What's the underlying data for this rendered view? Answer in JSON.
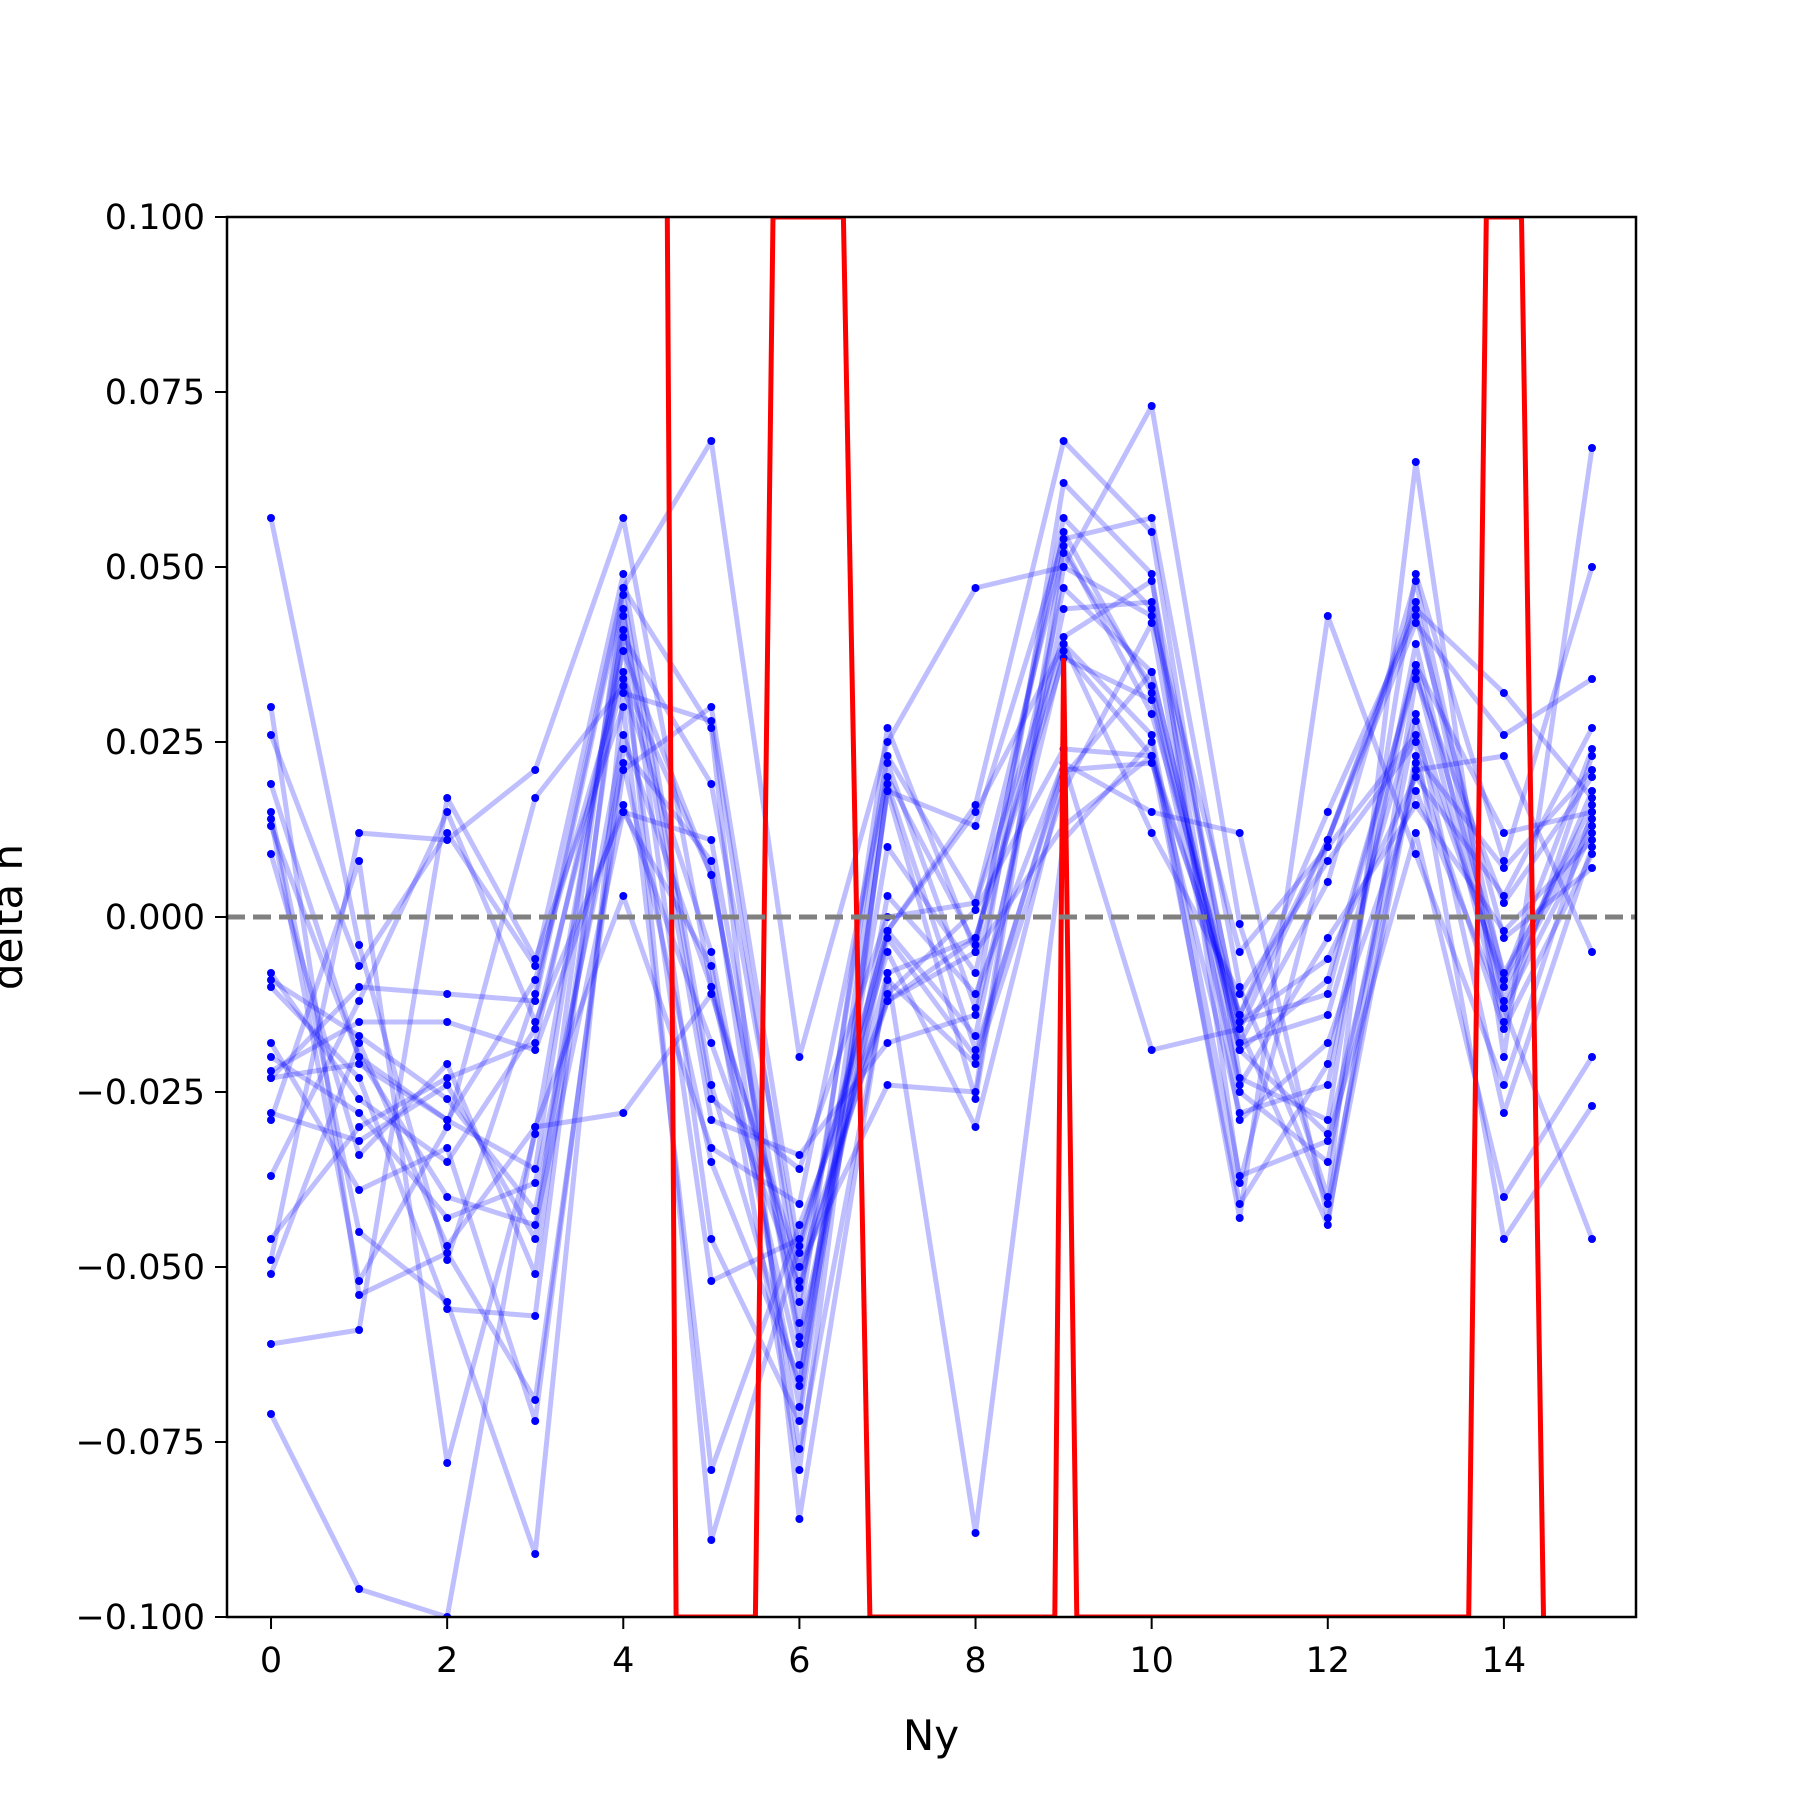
{
  "chart_data": {
    "type": "line",
    "xlabel": "Ny",
    "ylabel": "delta h",
    "xlim": [
      -0.5,
      15.5
    ],
    "ylim": [
      -0.1,
      0.1
    ],
    "x_ticks": [
      0,
      2,
      4,
      6,
      8,
      10,
      12,
      14
    ],
    "y_ticks": [
      0.1,
      0.075,
      0.05,
      0.025,
      0.0,
      -0.025,
      -0.05,
      -0.075,
      -0.1
    ],
    "y_tick_labels": [
      "0.100",
      "0.075",
      "0.050",
      "0.025",
      "0.000",
      "−0.025",
      "−0.050",
      "−0.075",
      "−0.100"
    ],
    "grid": false,
    "reference_line": {
      "y": 0.0,
      "style": "dashed",
      "color": "#808080"
    },
    "colors": {
      "series": "#0000ff",
      "highlight": "#ff0000"
    },
    "x": [
      0,
      1,
      2,
      3,
      4,
      5,
      6,
      7,
      8,
      9,
      10,
      11,
      12,
      13,
      14,
      15
    ],
    "series": [
      {
        "values": [
          0.057,
          -0.004,
          -0.049,
          -0.011,
          0.047,
          0.068,
          -0.02,
          0.025,
          0.047,
          0.05,
          0.073,
          -0.001,
          -0.04,
          0.065,
          -0.02,
          0.067
        ]
      },
      {
        "values": [
          0.03,
          -0.054,
          -0.048,
          -0.069,
          0.021,
          0.03,
          -0.048,
          -0.002,
          0.016,
          0.068,
          0.055,
          -0.023,
          -0.029,
          0.049,
          0.008,
          0.05
        ]
      },
      {
        "values": [
          0.026,
          -0.007,
          0.012,
          -0.007,
          0.049,
          -0.024,
          -0.067,
          0.022,
          -0.013,
          0.062,
          0.049,
          -0.038,
          0.011,
          0.042,
          0.026,
          0.034
        ]
      },
      {
        "values": [
          0.019,
          -0.02,
          -0.04,
          -0.044,
          0.015,
          0.011,
          -0.058,
          0.027,
          -0.005,
          0.057,
          0.044,
          -0.015,
          -0.006,
          0.02,
          0.003,
          0.027
        ]
      },
      {
        "values": [
          0.015,
          -0.045,
          -0.055,
          -0.091,
          0.032,
          0.028,
          -0.055,
          0.023,
          0.002,
          0.052,
          0.033,
          -0.019,
          -0.009,
          0.035,
          -0.015,
          0.023
        ]
      },
      {
        "values": [
          0.013,
          -0.02,
          -0.029,
          -0.036,
          0.044,
          -0.046,
          -0.072,
          0.018,
          0.013,
          0.054,
          0.057,
          -0.01,
          -0.041,
          0.023,
          0.007,
          0.021
        ]
      },
      {
        "values": [
          0.009,
          -0.034,
          -0.021,
          -0.051,
          0.04,
          0.019,
          -0.05,
          -0.024,
          -0.025,
          0.053,
          0.029,
          -0.014,
          0.011,
          0.045,
          -0.012,
          0.018
        ]
      },
      {
        "values": [
          -0.008,
          -0.026,
          -0.035,
          -0.016,
          0.034,
          0.006,
          -0.06,
          -0.002,
          -0.017,
          0.044,
          0.045,
          -0.025,
          -0.035,
          0.028,
          -0.028,
          0.01
        ]
      },
      {
        "values": [
          -0.009,
          -0.017,
          -0.026,
          -0.042,
          0.026,
          -0.01,
          -0.064,
          0.01,
          -0.008,
          0.047,
          0.035,
          -0.018,
          -0.014,
          0.029,
          -0.01,
          0.013
        ]
      },
      {
        "values": [
          -0.01,
          -0.023,
          -0.056,
          -0.057,
          0.043,
          -0.029,
          -0.034,
          -0.018,
          -0.014,
          0.038,
          0.023,
          -0.041,
          -0.021,
          0.036,
          -0.008,
          0.014
        ]
      },
      {
        "values": [
          -0.018,
          -0.039,
          -0.033,
          -0.072,
          0.024,
          0.008,
          -0.076,
          -0.009,
          -0.021,
          0.018,
          0.042,
          -0.029,
          -0.018,
          0.018,
          -0.013,
          0.012
        ]
      },
      {
        "values": [
          -0.02,
          -0.028,
          -0.043,
          -0.038,
          0.022,
          -0.035,
          -0.066,
          0.003,
          -0.011,
          0.022,
          0.015,
          0.012,
          -0.043,
          0.022,
          -0.016,
          0.009
        ]
      },
      {
        "values": [
          -0.022,
          -0.015,
          -0.015,
          -0.019,
          0.016,
          -0.018,
          -0.053,
          -0.008,
          -0.003,
          0.037,
          0.031,
          -0.024,
          -0.003,
          0.016,
          -0.002,
          0.011
        ]
      },
      {
        "values": [
          -0.023,
          -0.021,
          -0.029,
          -0.009,
          0.035,
          -0.052,
          -0.046,
          -0.005,
          -0.03,
          0.02,
          0.035,
          -0.018,
          0.005,
          0.048,
          -0.009,
          0.016
        ]
      },
      {
        "values": [
          -0.028,
          -0.032,
          -0.024,
          -0.046,
          0.047,
          0.027,
          -0.086,
          -0.008,
          -0.088,
          0.011,
          0.025,
          -0.043,
          0.043,
          0.009,
          -0.024,
          0.015
        ]
      },
      {
        "values": [
          -0.029,
          0.008,
          -0.078,
          -0.031,
          0.041,
          -0.089,
          -0.047,
          -0.002,
          0.015,
          0.039,
          0.012,
          -0.011,
          0.008,
          0.025,
          -0.046,
          -0.027
        ]
      },
      {
        "values": [
          -0.037,
          -0.012,
          0.015,
          -0.015,
          0.015,
          -0.007,
          -0.079,
          0.019,
          -0.019,
          0.021,
          0.022,
          -0.014,
          0.015,
          0.043,
          -0.003,
          0.007
        ]
      },
      {
        "values": [
          -0.046,
          -0.03,
          -0.023,
          -0.018,
          0.038,
          0.006,
          -0.061,
          -0.003,
          -0.02,
          0.022,
          -0.019,
          -0.016,
          0.011,
          0.044,
          0.032,
          0.017
        ]
      },
      {
        "values": [
          -0.049,
          0.012,
          0.011,
          0.021,
          0.057,
          -0.01,
          -0.052,
          -0.011,
          0.001,
          0.024,
          0.023,
          -0.015,
          -0.011,
          0.036,
          0.012,
          0.015
        ]
      },
      {
        "values": [
          -0.051,
          -0.018,
          -0.047,
          -0.03,
          0.003,
          -0.033,
          -0.041,
          0.02,
          -0.004,
          0.055,
          0.032,
          -0.019,
          -0.031,
          0.021,
          0.023,
          -0.005
        ]
      },
      {
        "values": [
          -0.061,
          -0.059,
          0.017,
          -0.006,
          0.03,
          -0.079,
          -0.044,
          -0.012,
          -0.005,
          0.013,
          0.023,
          -0.028,
          -0.024,
          0.039,
          -0.013,
          -0.046
        ]
      },
      {
        "values": [
          -0.071,
          -0.096,
          -0.1,
          -0.03,
          -0.028,
          -0.011,
          -0.05,
          -0.012,
          -0.003,
          0.039,
          0.026,
          -0.037,
          -0.032,
          0.012,
          -0.04,
          -0.02
        ]
      },
      {
        "values": [
          0.014,
          -0.052,
          -0.03,
          0.017,
          0.033,
          -0.005,
          -0.07,
          0.018,
          -0.026,
          0.05,
          0.043,
          -0.005,
          0.01,
          0.026,
          -0.009,
          0.024
        ]
      },
      {
        "values": [
          -0.023,
          -0.01,
          -0.011,
          -0.012,
          0.046,
          -0.026,
          -0.036,
          0.0,
          0.002,
          0.04,
          0.048,
          -0.016,
          -0.044,
          0.034,
          0.002,
          0.02
        ]
      }
    ],
    "highlight_series": {
      "x": [
        4.5,
        4.6,
        5.5,
        5.7,
        6.5,
        6.8,
        8.9,
        9.0,
        9.15,
        13.6,
        13.8,
        14.2,
        14.45
      ],
      "values": [
        0.1,
        -0.1,
        -0.1,
        0.1,
        0.1,
        -0.1,
        -0.1,
        0.037,
        -0.1,
        -0.1,
        0.1,
        0.1,
        -0.1
      ]
    }
  }
}
